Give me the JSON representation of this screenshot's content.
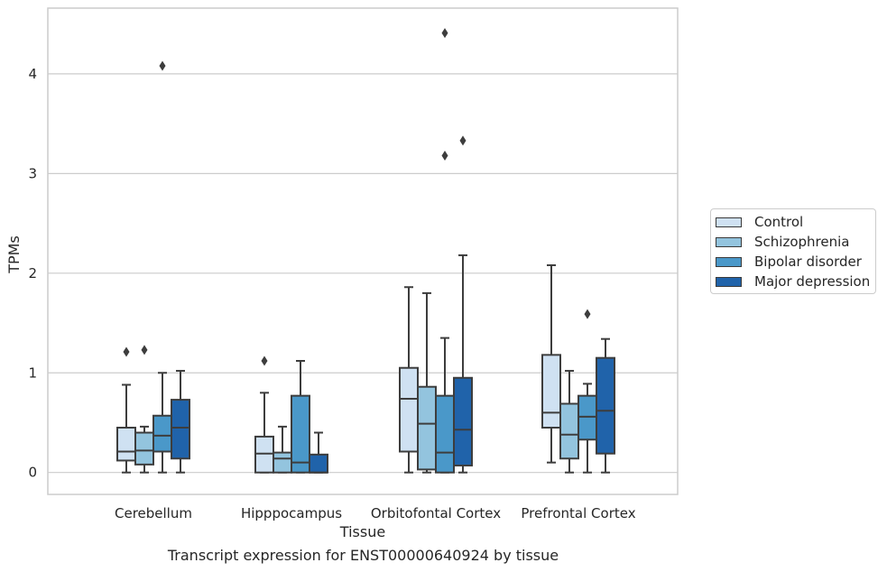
{
  "chart_data": {
    "type": "box",
    "xlabel": "Tissue",
    "ylabel": "TPMs",
    "caption": "Transcript expression for ENST00000640924 by tissue",
    "ylim": [
      -0.22,
      4.66
    ],
    "yticks": [
      0,
      1,
      2,
      3,
      4
    ],
    "grid": "horizontal",
    "legend_position": "right",
    "categories": [
      "Cerebellum",
      "Hipppocampus",
      "Orbitofontal Cortex",
      "Prefrontal Cortex"
    ],
    "series": [
      {
        "name": "Control",
        "color": "#cfe1f2",
        "boxes": [
          {
            "whislo": 0.0,
            "q1": 0.12,
            "med": 0.21,
            "q3": 0.45,
            "whishi": 0.88,
            "fliers": [
              1.21
            ]
          },
          {
            "whislo": 0.0,
            "q1": 0.0,
            "med": 0.19,
            "q3": 0.36,
            "whishi": 0.8,
            "fliers": [
              1.12
            ]
          },
          {
            "whislo": 0.0,
            "q1": 0.21,
            "med": 0.74,
            "q3": 1.05,
            "whishi": 1.86,
            "fliers": []
          },
          {
            "whislo": 0.1,
            "q1": 0.45,
            "med": 0.6,
            "q3": 1.18,
            "whishi": 2.08,
            "fliers": []
          }
        ]
      },
      {
        "name": "Schizophrenia",
        "color": "#93c4de",
        "boxes": [
          {
            "whislo": 0.0,
            "q1": 0.08,
            "med": 0.22,
            "q3": 0.4,
            "whishi": 0.46,
            "fliers": [
              1.23
            ]
          },
          {
            "whislo": 0.0,
            "q1": 0.0,
            "med": 0.14,
            "q3": 0.2,
            "whishi": 0.46,
            "fliers": []
          },
          {
            "whislo": 0.0,
            "q1": 0.03,
            "med": 0.49,
            "q3": 0.86,
            "whishi": 1.8,
            "fliers": []
          },
          {
            "whislo": 0.0,
            "q1": 0.14,
            "med": 0.38,
            "q3": 0.69,
            "whishi": 1.02,
            "fliers": []
          }
        ]
      },
      {
        "name": "Bipolar disorder",
        "color": "#4a98c9",
        "boxes": [
          {
            "whislo": 0.0,
            "q1": 0.21,
            "med": 0.37,
            "q3": 0.57,
            "whishi": 1.0,
            "fliers": [
              4.08
            ]
          },
          {
            "whislo": 0.0,
            "q1": 0.0,
            "med": 0.1,
            "q3": 0.77,
            "whishi": 1.12,
            "fliers": []
          },
          {
            "whislo": 0.0,
            "q1": 0.0,
            "med": 0.2,
            "q3": 0.77,
            "whishi": 1.35,
            "fliers": [
              4.41,
              3.18
            ]
          },
          {
            "whislo": 0.0,
            "q1": 0.33,
            "med": 0.56,
            "q3": 0.77,
            "whishi": 0.89,
            "fliers": [
              1.59
            ]
          }
        ]
      },
      {
        "name": "Major depression",
        "color": "#2063aa",
        "boxes": [
          {
            "whislo": 0.0,
            "q1": 0.14,
            "med": 0.45,
            "q3": 0.73,
            "whishi": 1.02,
            "fliers": []
          },
          {
            "whislo": 0.0,
            "q1": 0.0,
            "med": 0.0,
            "q3": 0.18,
            "whishi": 0.4,
            "fliers": []
          },
          {
            "whislo": 0.0,
            "q1": 0.07,
            "med": 0.43,
            "q3": 0.95,
            "whishi": 2.18,
            "fliers": [
              3.33
            ]
          },
          {
            "whislo": 0.0,
            "q1": 0.19,
            "med": 0.62,
            "q3": 1.15,
            "whishi": 1.34,
            "fliers": []
          }
        ]
      }
    ]
  }
}
